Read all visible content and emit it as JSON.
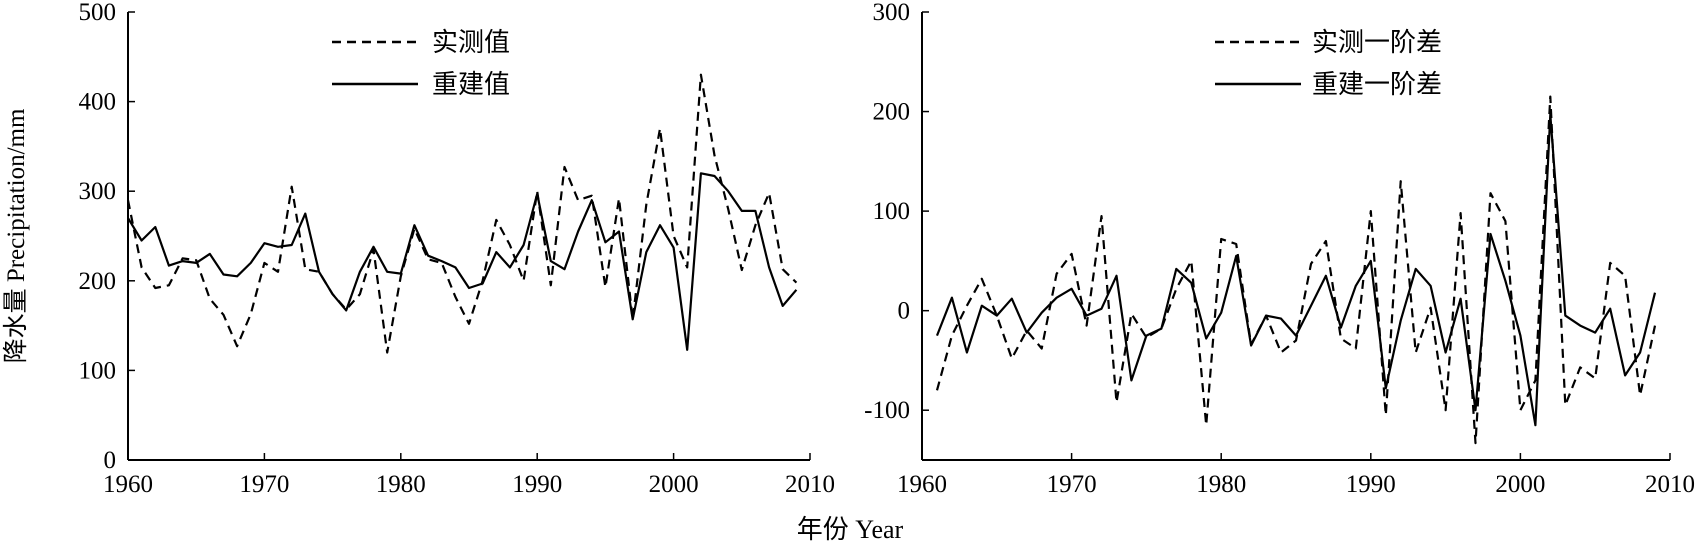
{
  "figure": {
    "shared_xlabel": "年份 Year"
  },
  "chart_data": [
    {
      "type": "line",
      "title": "",
      "xlabel": "",
      "ylabel": "降水量 Precipitation/mm",
      "xlim": [
        1960,
        2010
      ],
      "ylim": [
        0,
        500
      ],
      "xticks": [
        1960,
        1970,
        1980,
        1990,
        2000,
        2010
      ],
      "yticks": [
        0,
        100,
        200,
        300,
        400,
        500
      ],
      "legend_position": "top-center",
      "grid": false,
      "x": [
        1960,
        1961,
        1962,
        1963,
        1964,
        1965,
        1966,
        1967,
        1968,
        1969,
        1970,
        1971,
        1972,
        1973,
        1974,
        1975,
        1976,
        1977,
        1978,
        1979,
        1980,
        1981,
        1982,
        1983,
        1984,
        1985,
        1986,
        1987,
        1988,
        1989,
        1990,
        1991,
        1992,
        1993,
        1994,
        1995,
        1996,
        1997,
        1998,
        1999,
        2000,
        2001,
        2002,
        2003,
        2004,
        2005,
        2006,
        2007,
        2008,
        2009
      ],
      "series": [
        {
          "name": "实测值",
          "style": "dashed",
          "color": "#000000",
          "values": [
            290,
            215,
            192,
            195,
            225,
            223,
            180,
            162,
            127,
            163,
            220,
            210,
            305,
            213,
            210,
            185,
            168,
            185,
            235,
            120,
            205,
            258,
            224,
            220,
            182,
            152,
            200,
            268,
            240,
            200,
            300,
            195,
            327,
            290,
            295,
            193,
            292,
            157,
            285,
            370,
            250,
            215,
            430,
            340,
            280,
            212,
            262,
            298,
            213,
            198
          ]
        },
        {
          "name": "重建值",
          "style": "solid",
          "color": "#000000",
          "values": [
            270,
            245,
            260,
            217,
            222,
            220,
            230,
            207,
            205,
            220,
            242,
            238,
            240,
            275,
            210,
            185,
            167,
            210,
            238,
            210,
            208,
            262,
            228,
            222,
            215,
            192,
            197,
            232,
            215,
            240,
            297,
            222,
            213,
            255,
            290,
            243,
            255,
            157,
            232,
            262,
            237,
            123,
            320,
            317,
            300,
            278,
            278,
            215,
            172,
            190
          ]
        }
      ]
    },
    {
      "type": "line",
      "title": "",
      "xlabel": "",
      "ylabel": "",
      "xlim": [
        1960,
        2010
      ],
      "ylim": [
        -150,
        300
      ],
      "xticks": [
        1960,
        1970,
        1980,
        1990,
        2000,
        2010
      ],
      "yticks": [
        -100,
        0,
        100,
        200,
        300
      ],
      "legend_position": "top-center",
      "grid": false,
      "x": [
        1961,
        1962,
        1963,
        1964,
        1965,
        1966,
        1967,
        1968,
        1969,
        1970,
        1971,
        1972,
        1973,
        1974,
        1975,
        1976,
        1977,
        1978,
        1979,
        1980,
        1981,
        1982,
        1983,
        1984,
        1985,
        1986,
        1987,
        1988,
        1989,
        1990,
        1991,
        1992,
        1993,
        1994,
        1995,
        1996,
        1997,
        1998,
        1999,
        2000,
        2001,
        2002,
        2003,
        2004,
        2005,
        2006,
        2007,
        2008,
        2009
      ],
      "series": [
        {
          "name": "实测一阶差",
          "style": "dashed",
          "color": "#000000",
          "values": [
            -80,
            -25,
            5,
            32,
            -5,
            -48,
            -20,
            -38,
            37,
            57,
            -15,
            95,
            -92,
            -3,
            -27,
            -18,
            22,
            50,
            -115,
            72,
            67,
            -34,
            -5,
            -42,
            -30,
            47,
            70,
            -28,
            -38,
            100,
            -105,
            130,
            -42,
            3,
            -100,
            98,
            -133,
            118,
            90,
            -100,
            -70,
            215,
            -95,
            -57,
            -68,
            48,
            35,
            -85,
            -15
          ]
        },
        {
          "name": "重建一阶差",
          "style": "solid",
          "color": "#000000",
          "values": [
            -25,
            13,
            -42,
            5,
            -5,
            12,
            -22,
            -2,
            13,
            22,
            -5,
            2,
            35,
            -70,
            -25,
            -18,
            42,
            28,
            -28,
            -2,
            55,
            -35,
            -5,
            -8,
            -25,
            5,
            35,
            -17,
            25,
            50,
            -78,
            -10,
            42,
            25,
            -42,
            12,
            -100,
            77,
            30,
            -25,
            -115,
            197,
            -5,
            -15,
            -22,
            2,
            -65,
            -42,
            18
          ]
        }
      ]
    }
  ]
}
